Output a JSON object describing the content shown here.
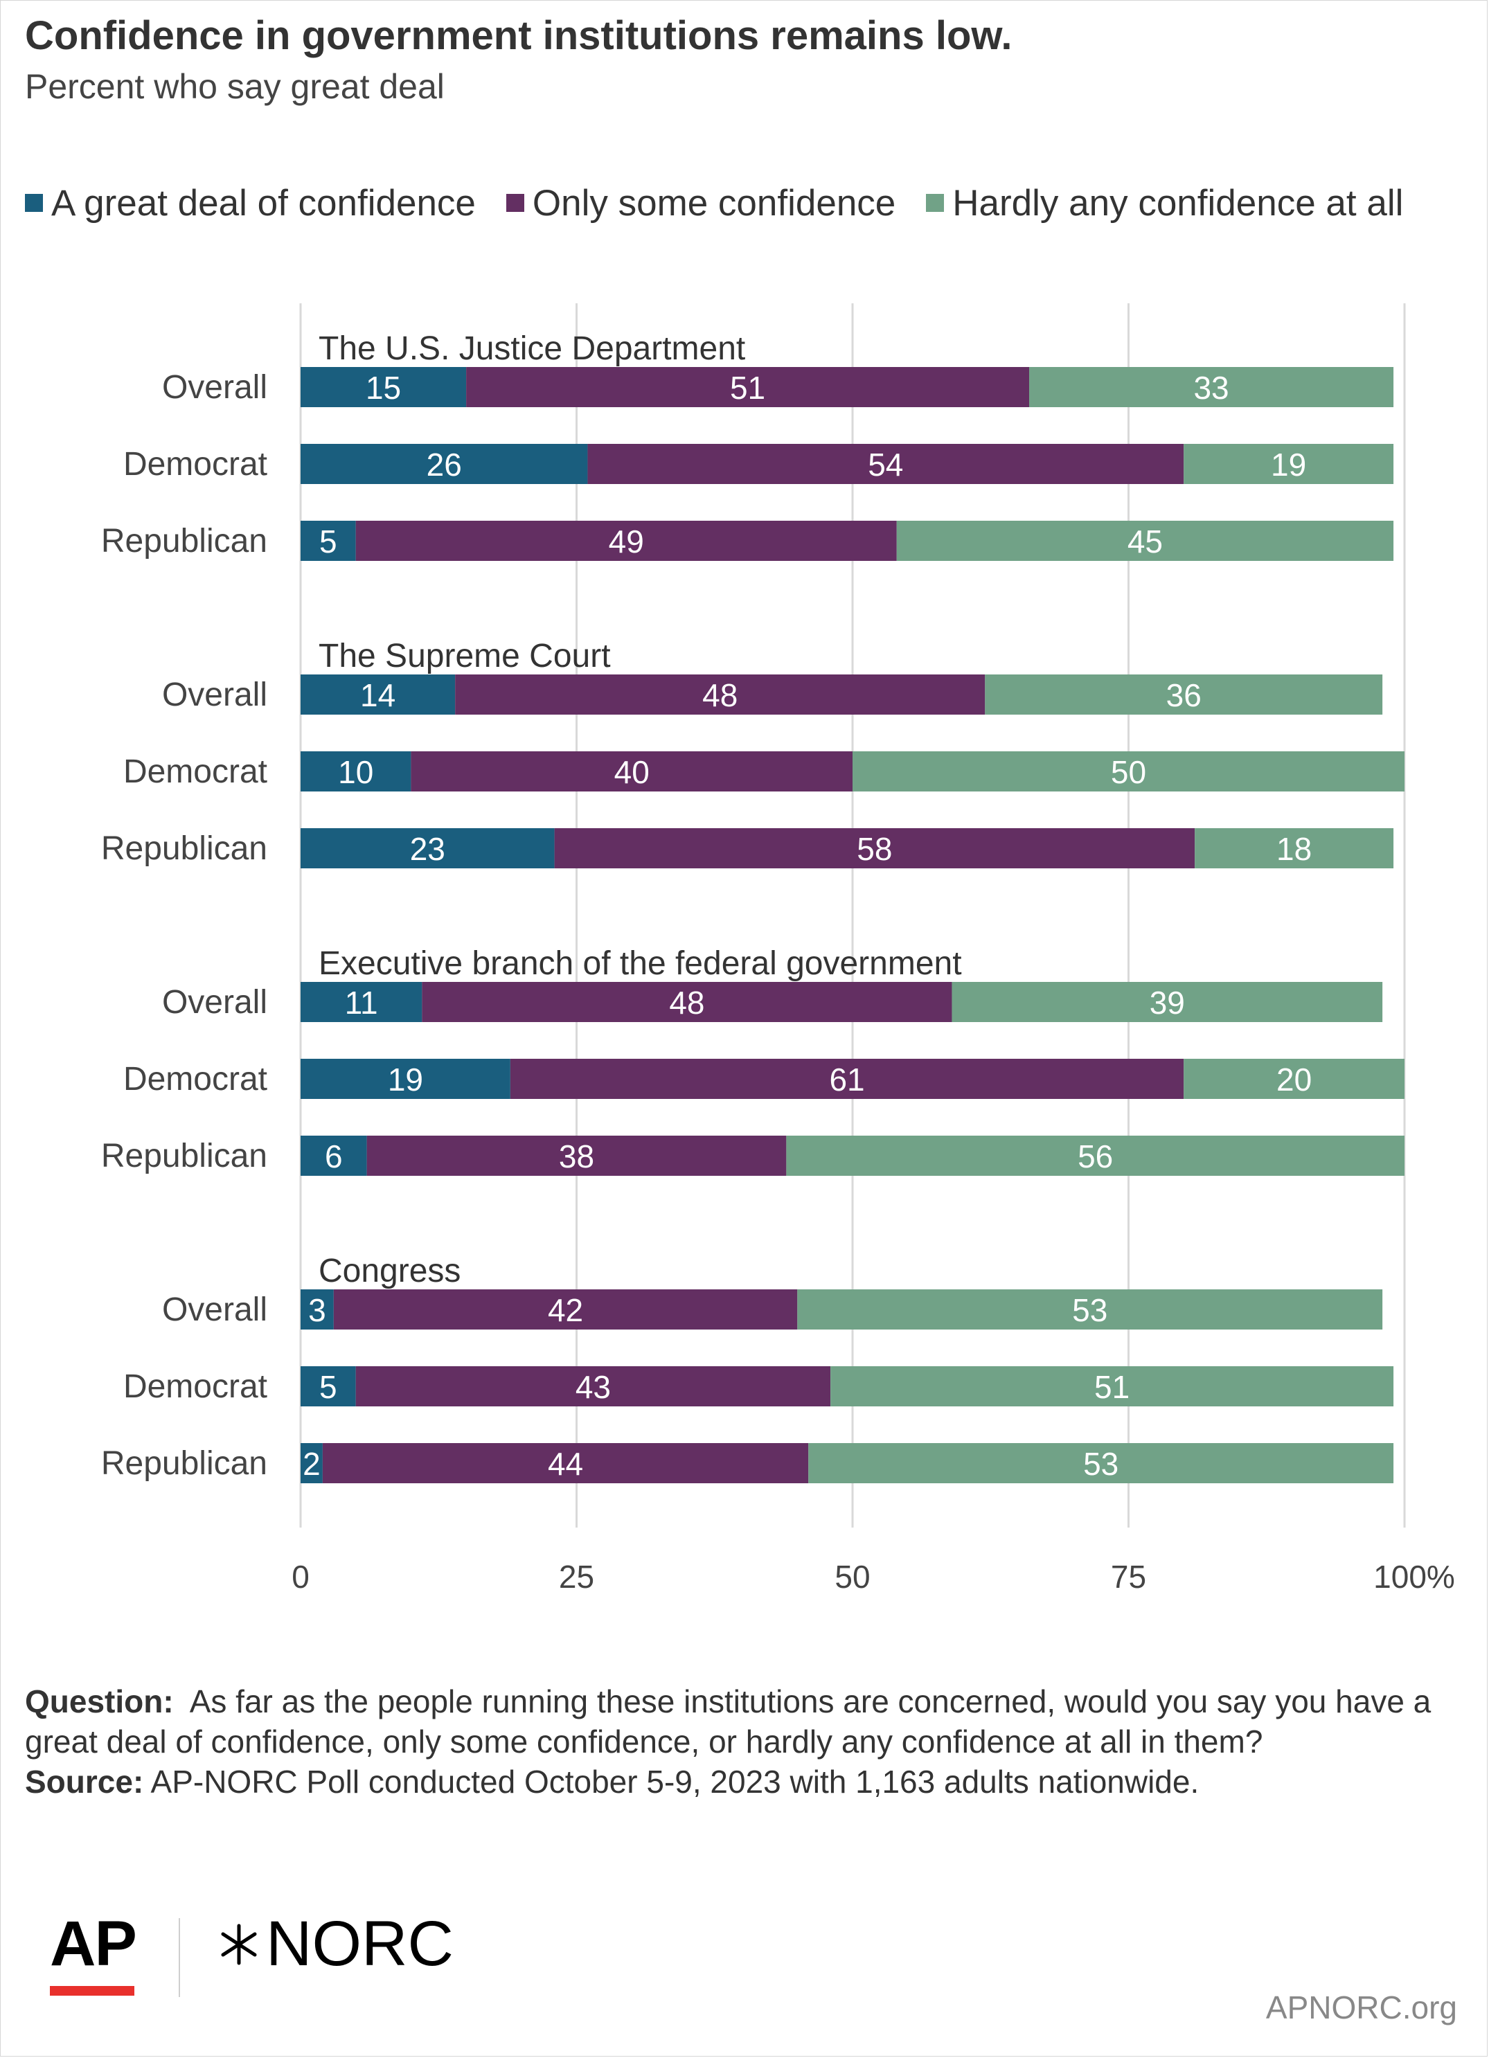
{
  "title": "Confidence in government institutions remains low.",
  "subtitle": "Percent who say great deal",
  "legend": [
    {
      "label": "A great deal of confidence",
      "color": "#1a5e7e"
    },
    {
      "label": "Only some confidence",
      "color": "#632f62"
    },
    {
      "label": "Hardly any confidence at all",
      "color": "#71a287"
    }
  ],
  "chart_data": {
    "type": "bar",
    "orientation": "horizontal",
    "stacked": true,
    "x_ticks": [
      "0",
      "25",
      "50",
      "75",
      "100%"
    ],
    "xlim": [
      0,
      100
    ],
    "grid": true,
    "legend_position": "top",
    "series_names": [
      "A great deal of confidence",
      "Only some confidence",
      "Hardly any confidence at all"
    ],
    "groups": [
      {
        "name": "The U.S. Justice Department",
        "rows": [
          {
            "label": "Overall",
            "values": [
              15,
              51,
              33
            ]
          },
          {
            "label": "Democrat",
            "values": [
              26,
              54,
              19
            ]
          },
          {
            "label": "Republican",
            "values": [
              5,
              49,
              45
            ]
          }
        ]
      },
      {
        "name": "The Supreme Court",
        "rows": [
          {
            "label": "Overall",
            "values": [
              14,
              48,
              36
            ]
          },
          {
            "label": "Democrat",
            "values": [
              10,
              40,
              50
            ]
          },
          {
            "label": "Republican",
            "values": [
              23,
              58,
              18
            ]
          }
        ]
      },
      {
        "name": "Executive branch of the federal government",
        "rows": [
          {
            "label": "Overall",
            "values": [
              11,
              48,
              39
            ]
          },
          {
            "label": "Democrat",
            "values": [
              19,
              61,
              20
            ]
          },
          {
            "label": "Republican",
            "values": [
              6,
              38,
              56
            ]
          }
        ]
      },
      {
        "name": "Congress",
        "rows": [
          {
            "label": "Overall",
            "values": [
              3,
              42,
              53
            ]
          },
          {
            "label": "Democrat",
            "values": [
              5,
              43,
              51
            ]
          },
          {
            "label": "Republican",
            "values": [
              2,
              44,
              53
            ]
          }
        ]
      }
    ]
  },
  "notes": {
    "question_label": "Question:",
    "question_text": "As far as the people running these institutions are concerned, would you say you have a great deal of confidence, only some confidence, or hardly any confidence at all in them?",
    "source_label": "Source:",
    "source_text": "AP-NORC Poll conducted October 5-9, 2023 with 1,163 adults nationwide."
  },
  "branding": {
    "ap_logo": "AP",
    "norc_logo": "NORC",
    "website": "APNORC.org"
  }
}
